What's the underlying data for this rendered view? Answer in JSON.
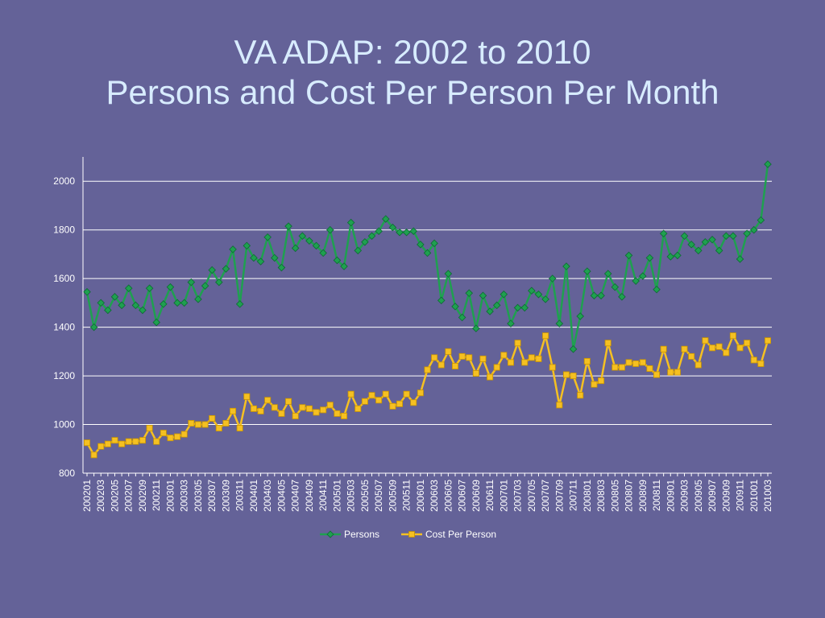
{
  "title": {
    "line1": "VA ADAP: 2002 to 2010",
    "line2": "Persons and Cost Per Person Per Month"
  },
  "colors": {
    "background": "#646298",
    "title": "#d8ecff",
    "persons": "#1fa050",
    "cost": "#f5c022",
    "grid": "#ffffff"
  },
  "chart_data": {
    "type": "line",
    "title": "VA ADAP: 2002 to 2010 Persons and Cost Per Person Per Month",
    "ylim": [
      800,
      2100
    ],
    "yticks": [
      800,
      1000,
      1200,
      1400,
      1600,
      1800,
      2000
    ],
    "grid": true,
    "legend_position": "bottom",
    "x": [
      "200201",
      "200202",
      "200203",
      "200204",
      "200205",
      "200206",
      "200207",
      "200208",
      "200209",
      "200210",
      "200211",
      "200212",
      "200301",
      "200302",
      "200303",
      "200304",
      "200305",
      "200306",
      "200307",
      "200308",
      "200309",
      "200310",
      "200311",
      "200312",
      "200401",
      "200402",
      "200403",
      "200404",
      "200405",
      "200406",
      "200407",
      "200408",
      "200409",
      "200410",
      "200411",
      "200412",
      "200501",
      "200502",
      "200503",
      "200504",
      "200505",
      "200506",
      "200507",
      "200508",
      "200509",
      "200510",
      "200511",
      "200512",
      "200601",
      "200602",
      "200603",
      "200604",
      "200605",
      "200606",
      "200607",
      "200608",
      "200609",
      "200610",
      "200611",
      "200612",
      "200701",
      "200702",
      "200703",
      "200704",
      "200705",
      "200706",
      "200707",
      "200708",
      "200709",
      "200710",
      "200711",
      "200712",
      "200801",
      "200802",
      "200803",
      "200804",
      "200805",
      "200806",
      "200807",
      "200808",
      "200809",
      "200810",
      "200811",
      "200812",
      "200901",
      "200902",
      "200903",
      "200904",
      "200905",
      "200906",
      "200907",
      "200908",
      "200909",
      "200910",
      "200911",
      "200912",
      "201001",
      "201002",
      "201003"
    ],
    "x_tick_labels": [
      "200201",
      "200203",
      "200205",
      "200207",
      "200209",
      "200211",
      "200301",
      "200303",
      "200305",
      "200307",
      "200309",
      "200311",
      "200401",
      "200403",
      "200405",
      "200407",
      "200409",
      "200411",
      "200501",
      "200503",
      "200505",
      "200507",
      "200509",
      "200511",
      "200601",
      "200603",
      "200605",
      "200607",
      "200609",
      "200611",
      "200701",
      "200703",
      "200705",
      "200707",
      "200709",
      "200711",
      "200801",
      "200803",
      "200805",
      "200807",
      "200809",
      "200811",
      "200901",
      "200903",
      "200905",
      "200907",
      "200909",
      "200911",
      "201001",
      "201003"
    ],
    "series": [
      {
        "name": "Persons",
        "marker": "diamond",
        "values": [
          1545,
          1400,
          1500,
          1470,
          1525,
          1490,
          1560,
          1490,
          1470,
          1560,
          1420,
          1495,
          1565,
          1500,
          1500,
          1585,
          1515,
          1570,
          1635,
          1585,
          1640,
          1720,
          1495,
          1735,
          1685,
          1670,
          1770,
          1685,
          1645,
          1815,
          1725,
          1775,
          1755,
          1735,
          1705,
          1800,
          1675,
          1650,
          1830,
          1715,
          1750,
          1775,
          1795,
          1845,
          1810,
          1790,
          1790,
          1795,
          1740,
          1705,
          1745,
          1510,
          1620,
          1485,
          1440,
          1540,
          1395,
          1530,
          1465,
          1490,
          1535,
          1415,
          1480,
          1480,
          1550,
          1535,
          1515,
          1600,
          1415,
          1650,
          1310,
          1445,
          1630,
          1530,
          1530,
          1620,
          1565,
          1525,
          1695,
          1590,
          1610,
          1685,
          1555,
          1785,
          1690,
          1695,
          1775,
          1740,
          1715,
          1750,
          1760,
          1715,
          1775,
          1775,
          1680,
          1785,
          1800,
          1840,
          2070
        ]
      },
      {
        "name": "Cost Per Person",
        "marker": "square",
        "values": [
          925,
          875,
          910,
          920,
          935,
          920,
          930,
          930,
          935,
          985,
          930,
          965,
          945,
          950,
          960,
          1005,
          1000,
          1000,
          1025,
          985,
          1005,
          1055,
          985,
          1115,
          1065,
          1055,
          1100,
          1070,
          1045,
          1095,
          1035,
          1070,
          1065,
          1050,
          1060,
          1080,
          1045,
          1035,
          1125,
          1065,
          1095,
          1120,
          1100,
          1125,
          1075,
          1085,
          1125,
          1090,
          1130,
          1225,
          1275,
          1245,
          1300,
          1240,
          1280,
          1275,
          1210,
          1270,
          1195,
          1235,
          1285,
          1255,
          1335,
          1255,
          1275,
          1270,
          1365,
          1235,
          1080,
          1205,
          1200,
          1120,
          1260,
          1165,
          1180,
          1335,
          1235,
          1235,
          1255,
          1250,
          1255,
          1230,
          1205,
          1310,
          1215,
          1215,
          1310,
          1280,
          1245,
          1345,
          1315,
          1320,
          1295,
          1365,
          1315,
          1335,
          1265,
          1250,
          1345
        ]
      }
    ]
  }
}
